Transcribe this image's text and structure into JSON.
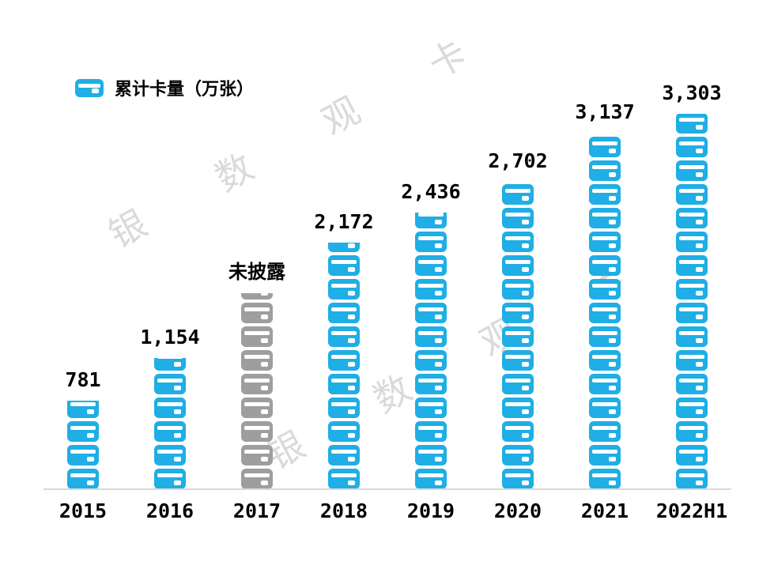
{
  "legend": {
    "label": "累计卡量（万张）"
  },
  "watermark": {
    "text": "银 数 观 卡",
    "color": "#dadada"
  },
  "chart_data": {
    "type": "bar",
    "style": "pictogram-stacked-card-icons",
    "title": "累计卡量（万张）",
    "unit": "万张",
    "categories": [
      "2015",
      "2016",
      "2017",
      "2018",
      "2019",
      "2020",
      "2021",
      "2022H1"
    ],
    "values": [
      781,
      1154,
      null,
      2172,
      2436,
      2702,
      3137,
      3303
    ],
    "value_labels": [
      "781",
      "1,154",
      "未披露",
      "2,172",
      "2,436",
      "2,702",
      "3,137",
      "3,303"
    ],
    "undisclosed": {
      "index": 2,
      "label": "未披露",
      "approx_display_value": 1725
    },
    "ylim": [
      0,
      3500
    ],
    "grid": false,
    "legend_position": "top-left",
    "colors": {
      "bar": "#1FAEE5",
      "undisclosed_bar": "#9E9E9E",
      "label": "#000000",
      "baseline": "#D9D9D9"
    }
  }
}
